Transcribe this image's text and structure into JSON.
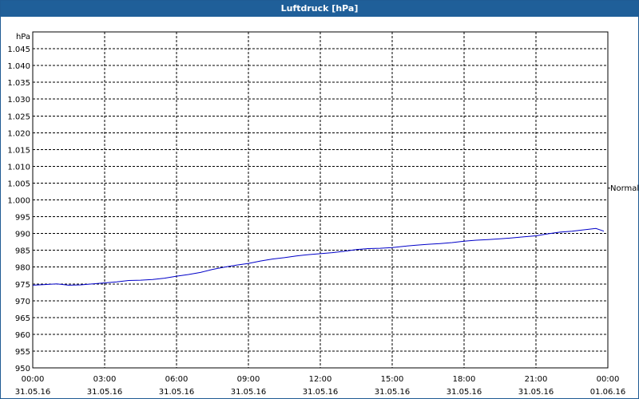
{
  "window": {
    "title": "Luftdruck [hPa]"
  },
  "colors": {
    "titlebar": "#1f5f99",
    "series": "#0000c8",
    "grid": "#000000"
  },
  "chart_data": {
    "type": "line",
    "title": "Luftdruck [hPa]",
    "ylabel": "hPa",
    "ylim": [
      950,
      1050
    ],
    "yticks": [
      950,
      955,
      960,
      965,
      970,
      975,
      980,
      985,
      990,
      995,
      1000,
      1005,
      1010,
      1015,
      1020,
      1025,
      1030,
      1035,
      1040,
      1045
    ],
    "ytick_labels": [
      "950",
      "955",
      "960",
      "965",
      "970",
      "975",
      "980",
      "985",
      "990",
      "995",
      "1.000",
      "1.005",
      "1.010",
      "1.015",
      "1.020",
      "1.025",
      "1.030",
      "1.035",
      "1.040",
      "1.045"
    ],
    "xlim": [
      "31.05.16 00:00",
      "01.06.16 00:00"
    ],
    "xticks": [
      {
        "time": "00:00",
        "date": "31.05.16"
      },
      {
        "time": "03:00",
        "date": "31.05.16"
      },
      {
        "time": "06:00",
        "date": "31.05.16"
      },
      {
        "time": "09:00",
        "date": "31.05.16"
      },
      {
        "time": "12:00",
        "date": "31.05.16"
      },
      {
        "time": "15:00",
        "date": "31.05.16"
      },
      {
        "time": "18:00",
        "date": "31.05.16"
      },
      {
        "time": "21:00",
        "date": "31.05.16"
      },
      {
        "time": "00:00",
        "date": "01.06.16"
      }
    ],
    "grid": true,
    "reference_line": {
      "label": "Normal",
      "value": 1003.5
    },
    "series": [
      {
        "x": [
          "00:00",
          "00:30",
          "01:00",
          "01:30",
          "02:00",
          "02:30",
          "03:00",
          "03:30",
          "04:00",
          "04:30",
          "05:00",
          "05:30",
          "06:00",
          "06:30",
          "07:00",
          "07:30",
          "08:00",
          "08:30",
          "09:00",
          "09:30",
          "10:00",
          "10:30",
          "11:00",
          "11:30",
          "12:00",
          "12:30",
          "13:00",
          "13:30",
          "14:00",
          "14:30",
          "15:00",
          "15:30",
          "16:00",
          "16:30",
          "17:00",
          "17:30",
          "18:00",
          "18:30",
          "19:00",
          "19:30",
          "20:00",
          "20:30",
          "21:00",
          "21:30",
          "22:00",
          "22:30",
          "23:00",
          "23:30",
          "23:50"
        ],
        "values": [
          974.6,
          974.8,
          975.0,
          974.6,
          974.7,
          975.0,
          975.3,
          975.6,
          976.0,
          976.1,
          976.3,
          976.7,
          977.3,
          977.8,
          978.4,
          979.3,
          980.0,
          980.6,
          981.1,
          981.8,
          982.4,
          982.8,
          983.3,
          983.7,
          984.0,
          984.3,
          984.7,
          985.2,
          985.5,
          985.6,
          985.8,
          986.2,
          986.5,
          986.8,
          987.0,
          987.3,
          987.7,
          988.0,
          988.2,
          988.4,
          988.7,
          989.0,
          989.3,
          989.9,
          990.4,
          990.7,
          991.1,
          991.5,
          990.7
        ]
      }
    ]
  }
}
